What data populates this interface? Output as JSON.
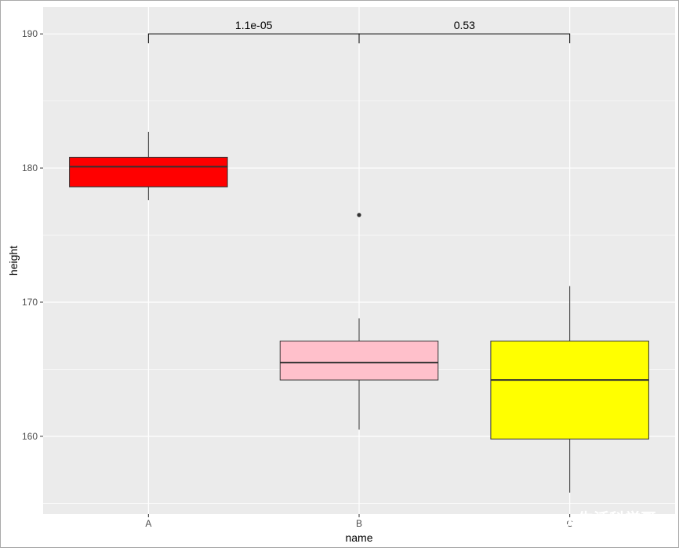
{
  "chart_data": {
    "type": "box",
    "xlabel": "name",
    "ylabel": "height",
    "categories": [
      "A",
      "B",
      "C"
    ],
    "ylim": [
      154.2,
      192.0
    ],
    "yticks": [
      160,
      170,
      180,
      190
    ],
    "y_minor_ticks": [
      155,
      165,
      175,
      185
    ],
    "grid": true,
    "background": "#ebebeb",
    "boxes": [
      {
        "category": "A",
        "fill": "#ff0000",
        "whisker_low": 177.6,
        "q1": 178.6,
        "median": 180.1,
        "q3": 180.8,
        "whisker_high": 182.7,
        "outliers": []
      },
      {
        "category": "B",
        "fill": "#ffc0cb",
        "whisker_low": 160.5,
        "q1": 164.2,
        "median": 165.5,
        "q3": 167.1,
        "whisker_high": 168.8,
        "outliers": [
          176.5
        ]
      },
      {
        "category": "C",
        "fill": "#ffff00",
        "whisker_low": 155.8,
        "q1": 159.8,
        "median": 164.2,
        "q3": 167.1,
        "whisker_high": 171.2,
        "outliers": []
      }
    ],
    "comparisons": [
      {
        "from": "A",
        "to": "B",
        "label": "1.1e-05"
      },
      {
        "from": "B",
        "to": "C",
        "label": "0.53"
      }
    ],
    "bracket_y": 190,
    "bracket_tip_y": 189.3
  },
  "watermark": {
    "text": "生活科学哥",
    "icon": "wechat-icon"
  }
}
